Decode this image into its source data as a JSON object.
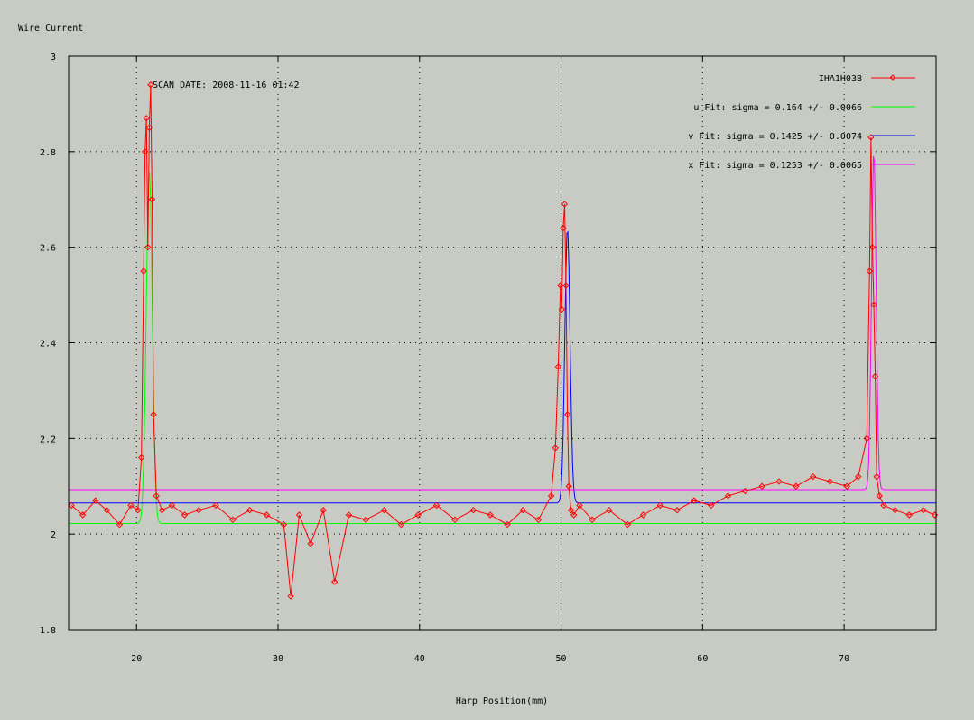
{
  "chart_data": {
    "type": "line",
    "title": "",
    "ylabel": "Wire Current",
    "xlabel": "Harp Position(mm)",
    "annotation": "SCAN DATE: 2008-11-16   01:42",
    "xlim": [
      15.2,
      76.5
    ],
    "ylim": [
      1.8,
      3.0
    ],
    "x_ticks": [
      20,
      30,
      40,
      50,
      60,
      70
    ],
    "y_ticks": [
      1.8,
      2.0,
      2.2,
      2.4,
      2.6,
      2.8,
      3.0
    ],
    "y_tick_labels": [
      "1.8",
      "2",
      "2.2",
      "2.4",
      "2.6",
      "2.8",
      "3"
    ],
    "grid": true,
    "legend_position": "top-right",
    "colors": {
      "background": "#c8cbc4",
      "data": "#ff0000",
      "u_fit": "#00ff00",
      "v_fit": "#0000ff",
      "x_fit": "#ff00ff"
    },
    "series": [
      {
        "name": "IHA1H03B",
        "role": "data",
        "x": [
          15.4,
          16.2,
          17.1,
          17.9,
          18.8,
          19.6,
          20.1,
          20.35,
          20.5,
          20.6,
          20.7,
          20.8,
          20.9,
          21.0,
          21.1,
          21.2,
          21.4,
          21.8,
          22.5,
          23.4,
          24.4,
          25.6,
          26.8,
          28.0,
          29.2,
          30.4,
          30.9,
          31.5,
          32.3,
          33.2,
          34.0,
          35.0,
          36.2,
          37.5,
          38.7,
          39.9,
          41.2,
          42.5,
          43.8,
          45.0,
          46.2,
          47.3,
          48.4,
          49.3,
          49.6,
          49.8,
          49.95,
          50.05,
          50.15,
          50.25,
          50.35,
          50.45,
          50.55,
          50.7,
          50.9,
          51.3,
          52.2,
          53.4,
          54.7,
          55.8,
          57.0,
          58.2,
          59.4,
          60.6,
          61.8,
          63.0,
          64.2,
          65.4,
          66.6,
          67.8,
          69.0,
          70.2,
          71.0,
          71.6,
          71.8,
          71.9,
          72.0,
          72.1,
          72.2,
          72.3,
          72.5,
          72.8,
          73.6,
          74.6,
          75.6,
          76.4
        ],
        "y": [
          2.06,
          2.04,
          2.07,
          2.05,
          2.02,
          2.06,
          2.05,
          2.16,
          2.55,
          2.8,
          2.87,
          2.6,
          2.85,
          2.94,
          2.7,
          2.25,
          2.08,
          2.05,
          2.06,
          2.04,
          2.05,
          2.06,
          2.03,
          2.05,
          2.04,
          2.02,
          1.87,
          2.04,
          1.98,
          2.05,
          1.9,
          2.04,
          2.03,
          2.05,
          2.02,
          2.04,
          2.06,
          2.03,
          2.05,
          2.04,
          2.02,
          2.05,
          2.03,
          2.08,
          2.18,
          2.35,
          2.52,
          2.47,
          2.64,
          2.69,
          2.52,
          2.25,
          2.1,
          2.05,
          2.04,
          2.06,
          2.03,
          2.05,
          2.02,
          2.04,
          2.06,
          2.05,
          2.07,
          2.06,
          2.08,
          2.09,
          2.1,
          2.11,
          2.1,
          2.12,
          2.11,
          2.1,
          2.12,
          2.2,
          2.55,
          2.83,
          2.6,
          2.48,
          2.33,
          2.12,
          2.08,
          2.06,
          2.05,
          2.04,
          2.05,
          2.04
        ]
      },
      {
        "name": "u  Fit: sigma = 0.164 +/- 0.0066",
        "role": "fit",
        "center": 20.9,
        "sigma": 0.164,
        "baseline": 2.022,
        "peak": 2.76
      },
      {
        "name": "v  Fit: sigma = 0.1425 +/- 0.0074",
        "role": "fit",
        "center": 50.45,
        "sigma": 0.1425,
        "baseline": 2.065,
        "peak": 2.64
      },
      {
        "name": "x  Fit: sigma = 0.1253 +/- 0.0065",
        "role": "fit",
        "center": 72.1,
        "sigma": 0.1253,
        "baseline": 2.093,
        "peak": 2.8
      }
    ]
  }
}
